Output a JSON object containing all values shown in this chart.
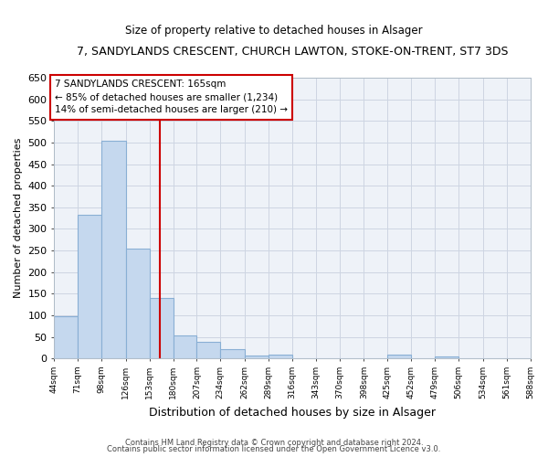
{
  "title": "7, SANDYLANDS CRESCENT, CHURCH LAWTON, STOKE-ON-TRENT, ST7 3DS",
  "subtitle": "Size of property relative to detached houses in Alsager",
  "xlabel": "Distribution of detached houses by size in Alsager",
  "ylabel": "Number of detached properties",
  "bar_values": [
    98,
    333,
    505,
    254,
    139,
    53,
    38,
    21,
    7,
    8,
    0,
    0,
    0,
    0,
    8,
    0,
    5,
    0,
    0,
    0
  ],
  "bin_edges": [
    44,
    71,
    98,
    126,
    153,
    180,
    207,
    234,
    262,
    289,
    316,
    343,
    370,
    398,
    425,
    452,
    479,
    506,
    534,
    561,
    588
  ],
  "tick_labels": [
    "44sqm",
    "71sqm",
    "98sqm",
    "126sqm",
    "153sqm",
    "180sqm",
    "207sqm",
    "234sqm",
    "262sqm",
    "289sqm",
    "316sqm",
    "343sqm",
    "370sqm",
    "398sqm",
    "425sqm",
    "452sqm",
    "479sqm",
    "506sqm",
    "534sqm",
    "561sqm",
    "588sqm"
  ],
  "bar_color": "#c5d8ee",
  "bar_edge_color": "#89afd4",
  "vline_x": 165,
  "vline_color": "#cc0000",
  "ylim": [
    0,
    650
  ],
  "yticks": [
    0,
    50,
    100,
    150,
    200,
    250,
    300,
    350,
    400,
    450,
    500,
    550,
    600,
    650
  ],
  "annotation_line1": "7 SANDYLANDS CRESCENT: 165sqm",
  "annotation_line2": "← 85% of detached houses are smaller (1,234)",
  "annotation_line3": "14% of semi-detached houses are larger (210) →",
  "box_color": "#cc0000",
  "footer1": "Contains HM Land Registry data © Crown copyright and database right 2024.",
  "footer2": "Contains public sector information licensed under the Open Government Licence v3.0.",
  "bg_color": "#eef2f8",
  "grid_color": "#cdd5e2"
}
